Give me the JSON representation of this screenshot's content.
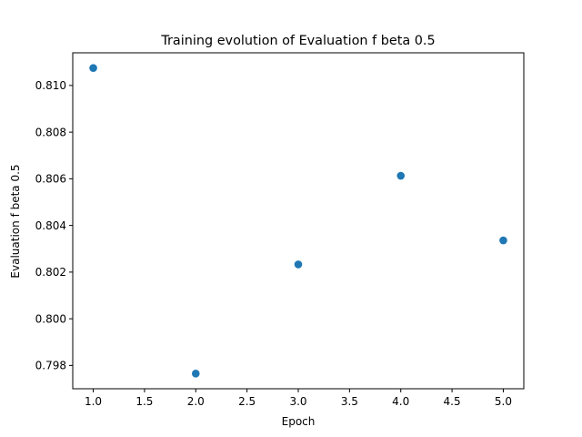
{
  "chart_data": {
    "type": "scatter",
    "title": "Training evolution of Evaluation f beta 0.5",
    "xlabel": "Epoch",
    "ylabel": "Evaluation f beta 0.5",
    "x": [
      1.0,
      2.0,
      3.0,
      4.0,
      5.0
    ],
    "y": [
      0.81075,
      0.79765,
      0.80233,
      0.80613,
      0.80336
    ],
    "xlim": [
      0.8,
      5.2
    ],
    "ylim": [
      0.797,
      0.8114
    ],
    "xticks": [
      1.0,
      1.5,
      2.0,
      2.5,
      3.0,
      3.5,
      4.0,
      4.5,
      5.0
    ],
    "xtick_labels": [
      "1.0",
      "1.5",
      "2.0",
      "2.5",
      "3.0",
      "3.5",
      "4.0",
      "4.5",
      "5.0"
    ],
    "yticks": [
      0.798,
      0.8,
      0.802,
      0.804,
      0.806,
      0.808,
      0.81
    ],
    "ytick_labels": [
      "0.798",
      "0.800",
      "0.802",
      "0.804",
      "0.806",
      "0.808",
      "0.810"
    ],
    "grid": false,
    "marker_color": "#1f77b4"
  }
}
